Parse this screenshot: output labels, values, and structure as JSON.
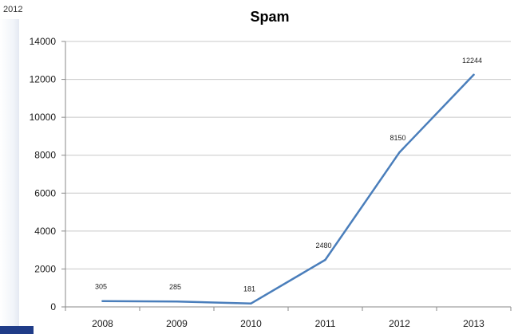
{
  "corner_label": "2012",
  "colors": {
    "line": "#4a7ebb",
    "grid": "#c8c8c8",
    "axis": "#8a8a8a",
    "accent": "#1f3c88"
  },
  "chart_data": {
    "type": "line",
    "title": "Spam",
    "categories": [
      "2008",
      "2009",
      "2010",
      "2011",
      "2012",
      "2013"
    ],
    "series": [
      {
        "values": [
          305,
          285,
          181,
          2480,
          8150,
          12244
        ],
        "labels": [
          "305",
          "285",
          "181",
          "2480",
          "8150",
          "12244"
        ]
      }
    ],
    "ylim": [
      0,
      14000
    ],
    "yticks": [
      0,
      2000,
      4000,
      6000,
      8000,
      10000,
      12000,
      14000
    ],
    "ytick_labels": [
      "0",
      "2000",
      "4000",
      "6000",
      "8000",
      "10000",
      "12000",
      "14000"
    ],
    "grid": true,
    "legend": "none",
    "xlabel": "",
    "ylabel": ""
  }
}
